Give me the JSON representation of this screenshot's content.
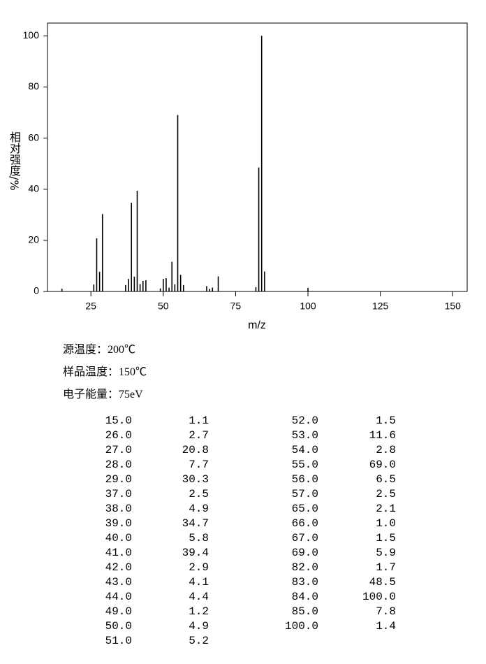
{
  "chart_data": {
    "type": "stick",
    "xlabel": "m/z",
    "ylabel": "相对强度/%",
    "xlim": [
      10,
      155
    ],
    "ylim": [
      0,
      105
    ],
    "xticks": [
      25,
      50,
      75,
      100,
      125,
      150
    ],
    "yticks": [
      0,
      20,
      40,
      60,
      80,
      100
    ],
    "color": "#000000",
    "x": [
      15,
      26,
      27,
      28,
      29,
      37,
      38,
      39,
      40,
      41,
      42,
      43,
      44,
      49,
      50,
      51,
      52,
      53,
      54,
      55,
      56,
      57,
      65,
      66,
      67,
      69,
      82,
      83,
      84,
      85,
      100
    ],
    "x_labels": [
      "15.0",
      "26.0",
      "27.0",
      "28.0",
      "29.0",
      "37.0",
      "38.0",
      "39.0",
      "40.0",
      "41.0",
      "42.0",
      "43.0",
      "44.0",
      "49.0",
      "50.0",
      "51.0",
      "52.0",
      "53.0",
      "54.0",
      "55.0",
      "56.0",
      "57.0",
      "65.0",
      "66.0",
      "67.0",
      "69.0",
      "82.0",
      "83.0",
      "84.0",
      "85.0",
      "100.0"
    ],
    "values": [
      1.1,
      2.7,
      20.8,
      7.7,
      30.3,
      2.5,
      4.9,
      34.7,
      5.8,
      39.4,
      2.9,
      4.1,
      4.4,
      1.2,
      4.9,
      5.2,
      1.5,
      11.6,
      2.8,
      69,
      6.5,
      2.5,
      2.1,
      1,
      1.5,
      5.9,
      1.7,
      48.5,
      100,
      7.8,
      1.4
    ],
    "value_labels": [
      "1.1",
      "2.7",
      "20.8",
      "7.7",
      "30.3",
      "2.5",
      "4.9",
      "34.7",
      "5.8",
      "39.4",
      "2.9",
      "4.1",
      "4.4",
      "1.2",
      "4.9",
      "5.2",
      "1.5",
      "11.6",
      "2.8",
      "69.0",
      "6.5",
      "2.5",
      "2.1",
      "1.0",
      "1.5",
      "5.9",
      "1.7",
      "48.5",
      "100.0",
      "7.8",
      "1.4"
    ]
  },
  "conditions": [
    "源温度：200℃",
    "样品温度：150℃",
    "电子能量：75eV"
  ]
}
